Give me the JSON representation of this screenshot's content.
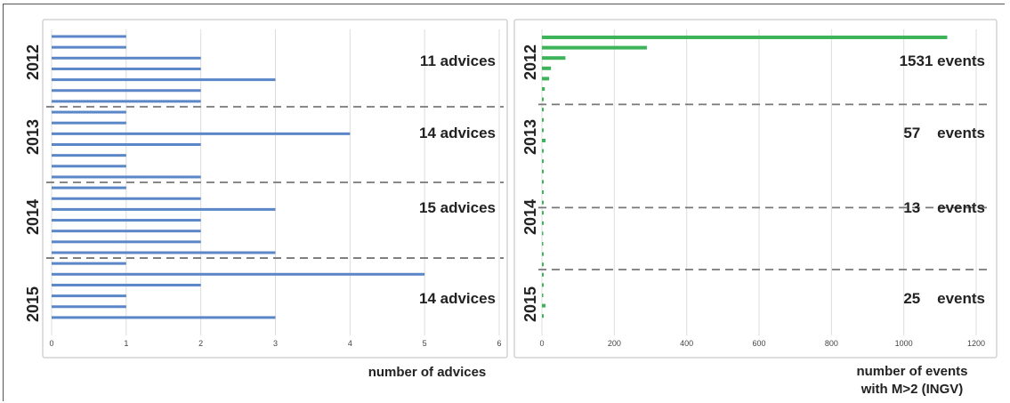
{
  "chart_data": [
    {
      "type": "bar",
      "orientation": "horizontal",
      "bar_color": "#5b86c8",
      "xlabel": "number of advices",
      "xlim": [
        0,
        6
      ],
      "xticks": [
        "0",
        "1",
        "2",
        "3",
        "4",
        "5",
        "6"
      ],
      "grid": true,
      "year_labels": [
        "2012",
        "2013",
        "2014",
        "2015"
      ],
      "group_annotations": [
        "11 advices",
        "14 advices",
        "15 advices",
        "14 advices"
      ],
      "values": [
        1,
        1,
        2,
        2,
        3,
        2,
        2,
        1,
        1,
        4,
        2,
        1,
        1,
        2,
        1,
        2,
        3,
        2,
        2,
        2,
        3,
        1,
        5,
        2,
        1,
        1,
        3
      ],
      "separators_after_index": [
        6,
        13,
        20
      ]
    },
    {
      "type": "bar",
      "orientation": "horizontal",
      "bar_color": "#3db35a",
      "xlabel": [
        "number of events",
        "with M>2 (INGV)"
      ],
      "xlim": [
        0,
        1200
      ],
      "xticks": [
        "0",
        "200",
        "400",
        "600",
        "800",
        "1000",
        "1200"
      ],
      "grid": true,
      "year_labels": [
        "2012",
        "2013",
        "2014",
        "2015"
      ],
      "group_annotations": [
        "1531 events",
        "57    events",
        "13    events",
        "25    events"
      ],
      "values": [
        1120,
        290,
        65,
        25,
        20,
        8,
        5,
        4,
        4,
        3,
        10,
        3,
        4,
        3,
        2,
        3,
        3,
        2,
        2,
        0,
        0,
        3,
        2,
        1,
        1,
        0,
        10,
        3
      ],
      "separators_after_index": [
        6,
        16,
        22
      ]
    }
  ]
}
